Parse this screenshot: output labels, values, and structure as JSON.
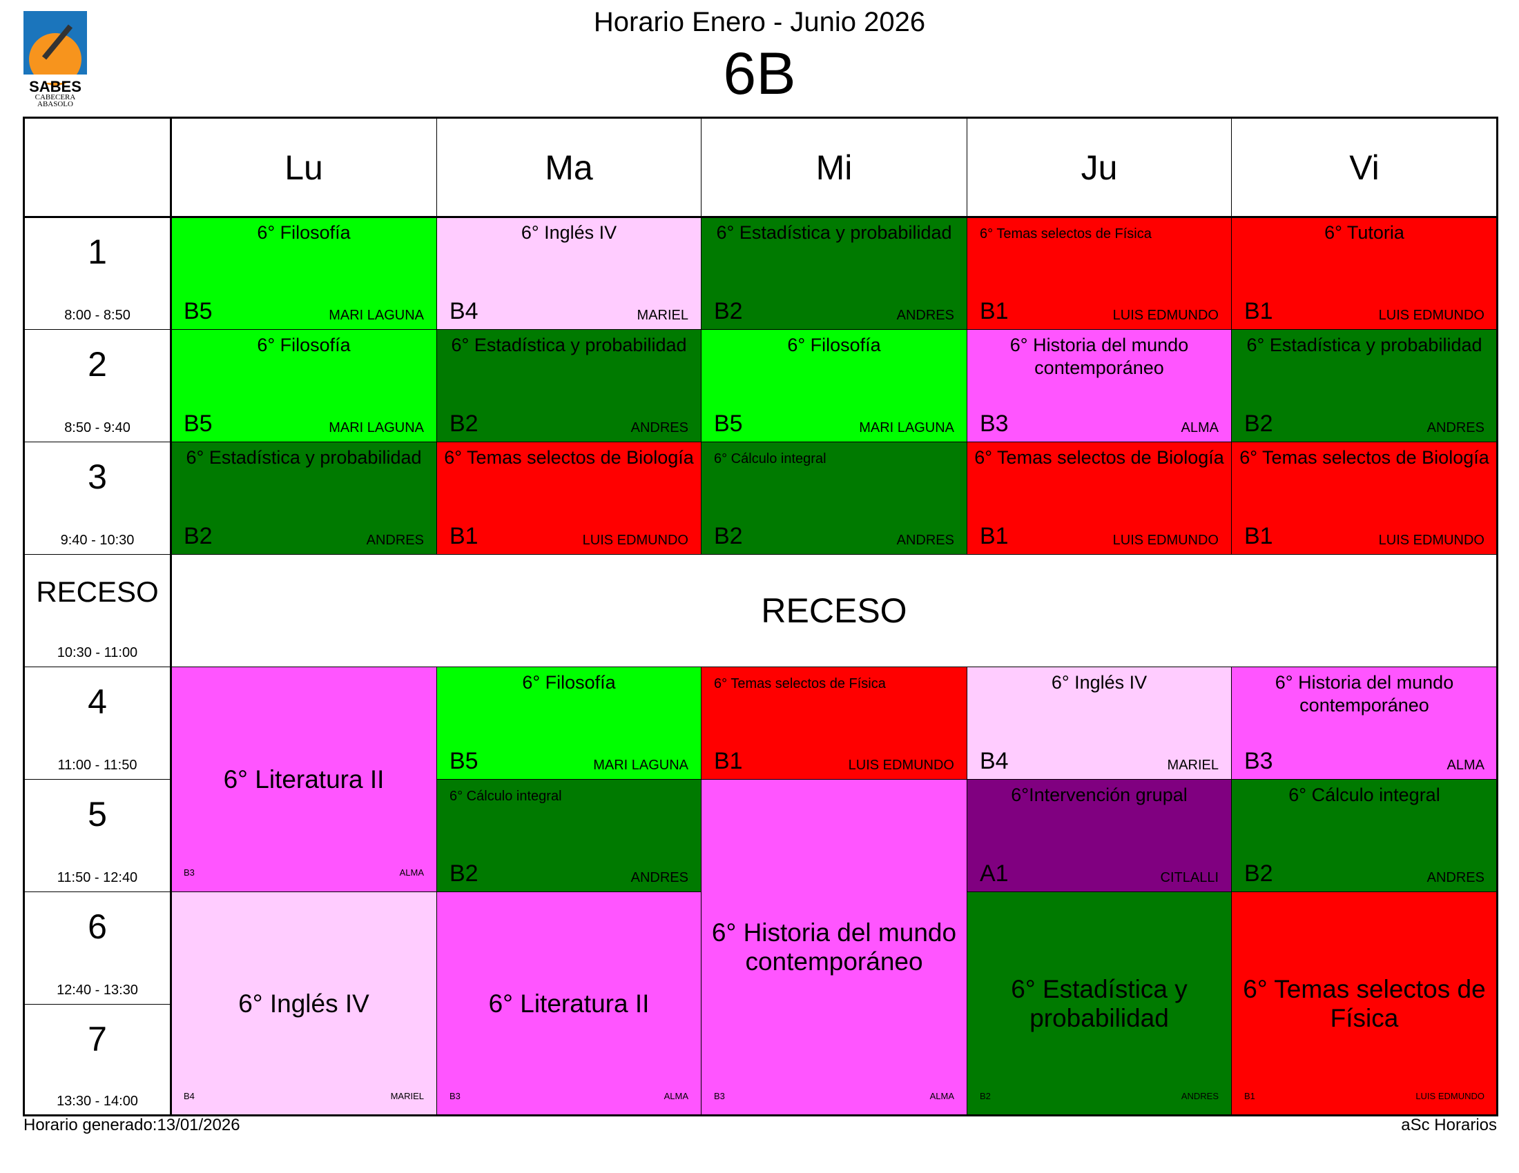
{
  "header": {
    "title": "Horario Enero - Junio 2026",
    "class": "6B"
  },
  "logo": {
    "name": "SABES",
    "line1": "CABECERA",
    "line2": "ABASOLO"
  },
  "periods": [
    {
      "name": "1",
      "time": "8:00 - 8:50"
    },
    {
      "name": "2",
      "time": "8:50 - 9:40"
    },
    {
      "name": "3",
      "time": "9:40 - 10:30"
    },
    {
      "name": "RECESO",
      "time": "10:30 - 11:00",
      "break": true
    },
    {
      "name": "4",
      "time": "11:00 - 11:50"
    },
    {
      "name": "5",
      "time": "11:50 - 12:40"
    },
    {
      "name": "6",
      "time": "12:40 - 13:30"
    },
    {
      "name": "7",
      "time": "13:30 - 14:00"
    }
  ],
  "break_label": "RECESO",
  "days": [
    {
      "name": "Lu",
      "lessons": [
        {
          "subject": "6° Filosofía",
          "room": "B5",
          "teacher": "MARI LAGUNA",
          "color": "#00ff00",
          "rows": 1
        },
        {
          "subject": "6° Filosofía",
          "room": "B5",
          "teacher": "MARI LAGUNA",
          "color": "#00ff00",
          "rows": 1
        },
        {
          "subject": "6° Estadística y probabilidad",
          "room": "B2",
          "teacher": "ANDRES",
          "color": "#007a00",
          "rows": 1
        },
        {
          "subject": "6° Literatura II",
          "room": "B3",
          "teacher": "ALMA",
          "color": "#ff55ff",
          "rows": 2
        },
        {
          "subject": "6° Inglés IV",
          "room": "B4",
          "teacher": "MARIEL",
          "color": "#ffccff",
          "rows": 2
        }
      ]
    },
    {
      "name": "Ma",
      "lessons": [
        {
          "subject": "6° Inglés IV",
          "room": "B4",
          "teacher": "MARIEL",
          "color": "#ffccff",
          "rows": 1
        },
        {
          "subject": "6° Estadística y probabilidad",
          "room": "B2",
          "teacher": "ANDRES",
          "color": "#007a00",
          "rows": 1
        },
        {
          "subject": "6° Temas selectos de Biología",
          "room": "B1",
          "teacher": "LUIS EDMUNDO",
          "color": "#ff0000",
          "rows": 1
        },
        {
          "subject": "6° Filosofía",
          "room": "B5",
          "teacher": "MARI LAGUNA",
          "color": "#00ff00",
          "rows": 1
        },
        {
          "subject": "6° Cálculo integral",
          "room": "B2",
          "teacher": "ANDRES",
          "color": "#007a00",
          "rows": 1,
          "compact": true
        },
        {
          "subject": "6° Literatura II",
          "room": "B3",
          "teacher": "ALMA",
          "color": "#ff55ff",
          "rows": 2
        }
      ]
    },
    {
      "name": "Mi",
      "lessons": [
        {
          "subject": "6° Estadística y probabilidad",
          "room": "B2",
          "teacher": "ANDRES",
          "color": "#007a00",
          "rows": 1
        },
        {
          "subject": "6° Filosofía",
          "room": "B5",
          "teacher": "MARI LAGUNA",
          "color": "#00ff00",
          "rows": 1
        },
        {
          "subject": "6° Cálculo integral",
          "room": "B2",
          "teacher": "ANDRES",
          "color": "#007a00",
          "rows": 1,
          "compact": true
        },
        {
          "subject": "6° Temas selectos de Física",
          "room": "B1",
          "teacher": "LUIS EDMUNDO",
          "color": "#ff0000",
          "rows": 1,
          "compact": true
        },
        {
          "subject": "6° Historia del mundo contemporáneo",
          "room": "B3",
          "teacher": "ALMA",
          "color": "#ff55ff",
          "rows": 3
        }
      ]
    },
    {
      "name": "Ju",
      "lessons": [
        {
          "subject": "6° Temas selectos de Física",
          "room": "B1",
          "teacher": "LUIS EDMUNDO",
          "color": "#ff0000",
          "rows": 1,
          "compact": true
        },
        {
          "subject": "6° Historia del mundo contemporáneo",
          "room": "B3",
          "teacher": "ALMA",
          "color": "#ff55ff",
          "rows": 1
        },
        {
          "subject": "6° Temas selectos de Biología",
          "room": "B1",
          "teacher": "LUIS EDMUNDO",
          "color": "#ff0000",
          "rows": 1
        },
        {
          "subject": "6° Inglés IV",
          "room": "B4",
          "teacher": "MARIEL",
          "color": "#ffccff",
          "rows": 1
        },
        {
          "subject": "6°Intervención grupal",
          "room": "A1",
          "teacher": "CITLALLI",
          "color": "#800080",
          "rows": 1
        },
        {
          "subject": "6° Estadística y probabilidad",
          "room": "B2",
          "teacher": "ANDRES",
          "color": "#007a00",
          "rows": 2
        }
      ]
    },
    {
      "name": "Vi",
      "lessons": [
        {
          "subject": "6° Tutoria",
          "room": "B1",
          "teacher": "LUIS EDMUNDO",
          "color": "#ff0000",
          "rows": 1
        },
        {
          "subject": "6° Estadística y probabilidad",
          "room": "B2",
          "teacher": "ANDRES",
          "color": "#007a00",
          "rows": 1
        },
        {
          "subject": "6° Temas selectos de Biología",
          "room": "B1",
          "teacher": "LUIS EDMUNDO",
          "color": "#ff0000",
          "rows": 1
        },
        {
          "subject": "6° Historia del mundo contemporáneo",
          "room": "B3",
          "teacher": "ALMA",
          "color": "#ff55ff",
          "rows": 1
        },
        {
          "subject": "6° Cálculo integral",
          "room": "B2",
          "teacher": "ANDRES",
          "color": "#007a00",
          "rows": 1
        },
        {
          "subject": "6° Temas selectos de Física",
          "room": "B1",
          "teacher": "LUIS EDMUNDO",
          "color": "#ff0000",
          "rows": 2
        }
      ]
    }
  ],
  "footer": {
    "generated": "Horario generado:13/01/2026",
    "app": "aSc Horarios"
  }
}
